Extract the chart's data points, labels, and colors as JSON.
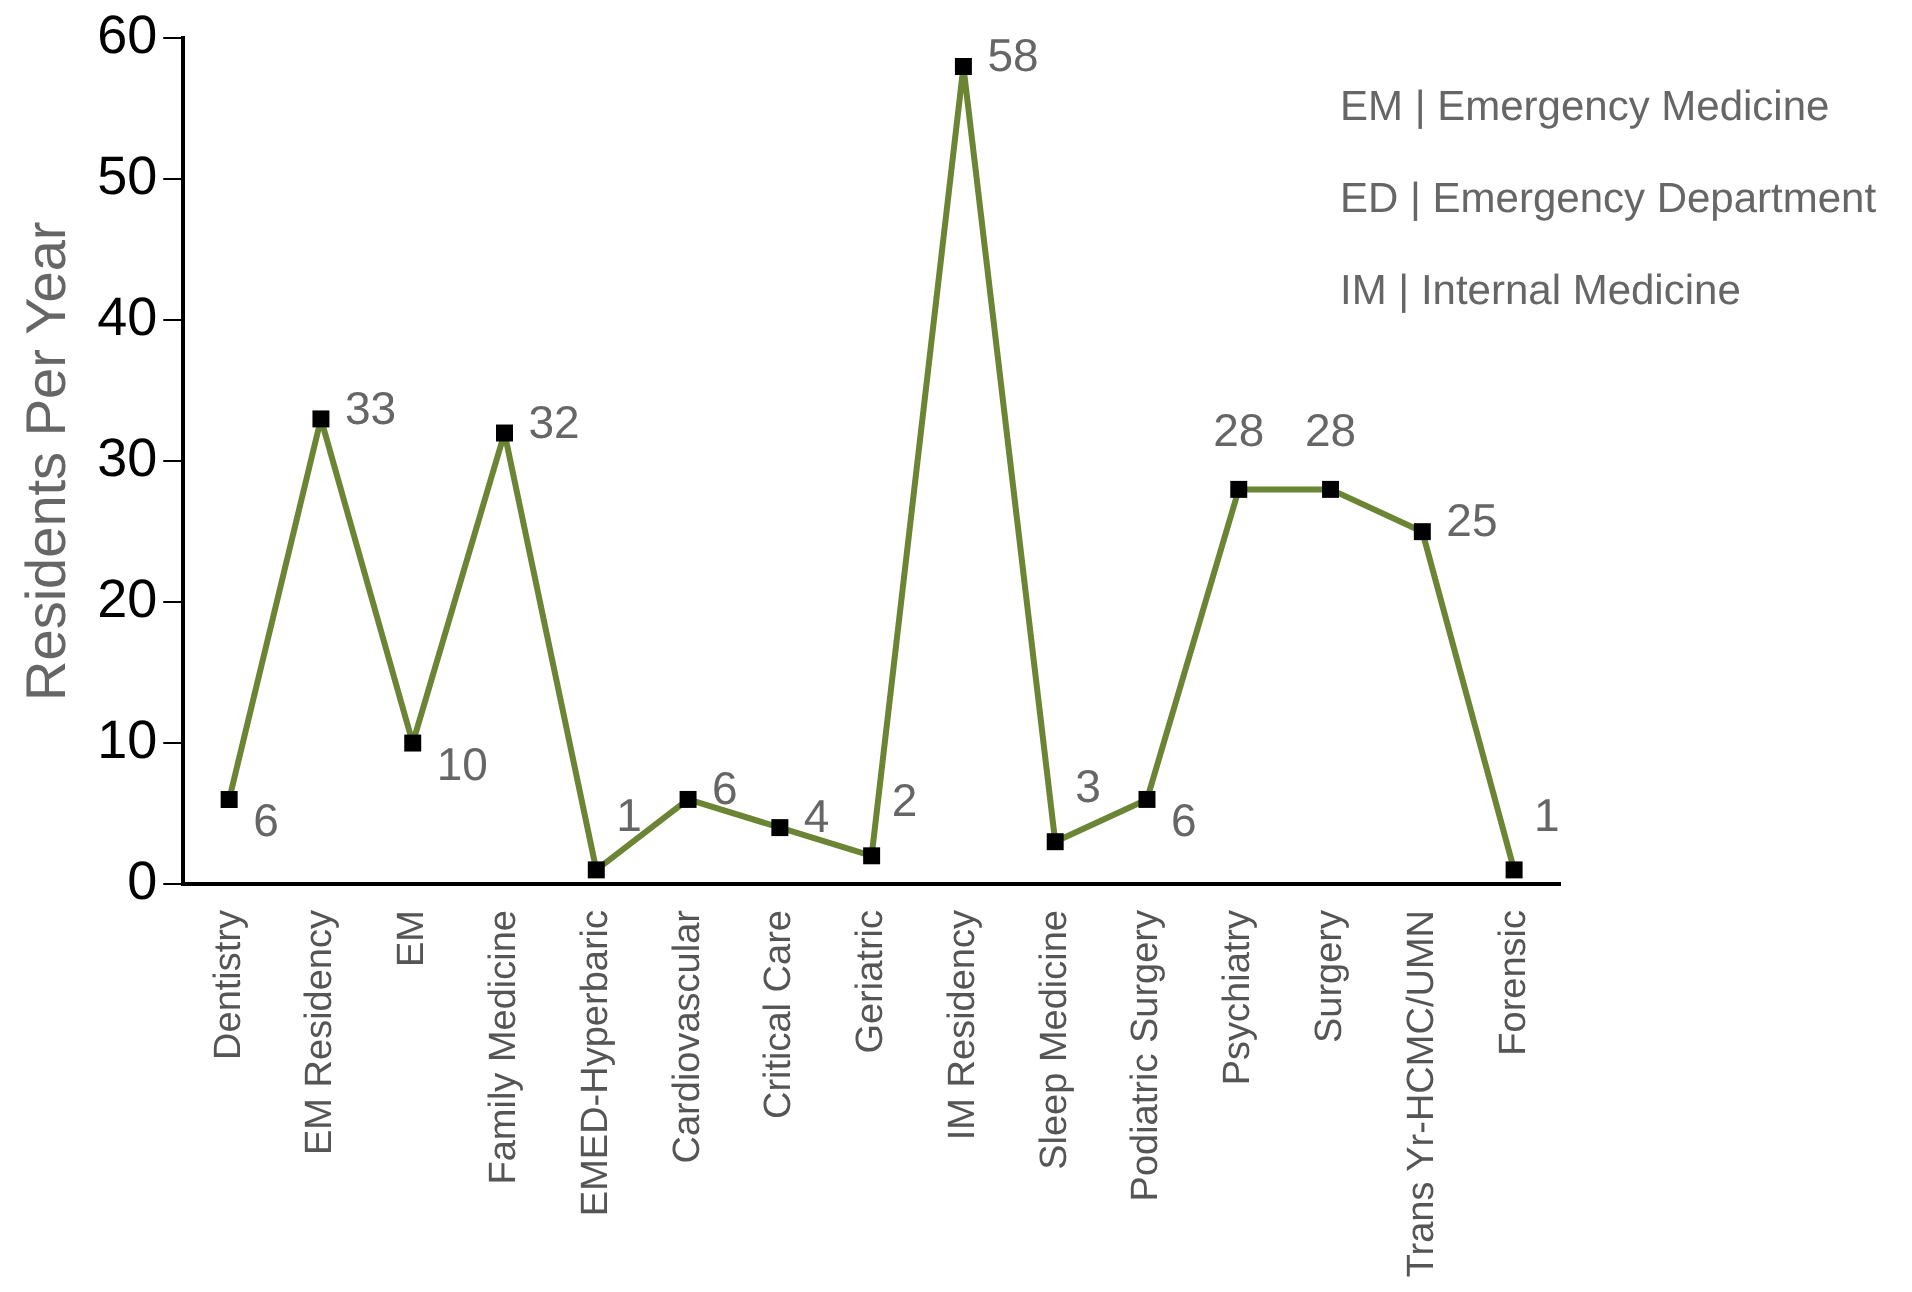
{
  "chart_data": {
    "type": "line",
    "ylabel": "Residents Per Year",
    "categories": [
      "Dentistry",
      "EM Residency",
      "EM",
      "Family Medicine",
      "EMED-Hyperbaric",
      "Cardiovascular",
      "Critical Care",
      "Geriatric",
      "IM Residency",
      "Sleep Medicine",
      "Podiatric Surgery",
      "Psychiatry",
      "Surgery",
      "Trans Yr-HCMC/UMN",
      "Forensic"
    ],
    "series": [
      {
        "color": "#6b8535",
        "values": [
          6,
          33,
          10,
          32,
          1,
          6,
          4,
          2,
          58,
          3,
          6,
          28,
          28,
          25,
          1
        ]
      }
    ],
    "ylim": [
      0,
      60
    ],
    "yticks": [
      0,
      10,
      20,
      30,
      40,
      50,
      60
    ],
    "grid": false,
    "legend": false,
    "marker": "square",
    "line_style": "solid",
    "data_labels": true,
    "annotations": [
      "EM | Emergency Medicine",
      "ED | Emergency Department",
      "IM | Internal Medicine"
    ]
  }
}
